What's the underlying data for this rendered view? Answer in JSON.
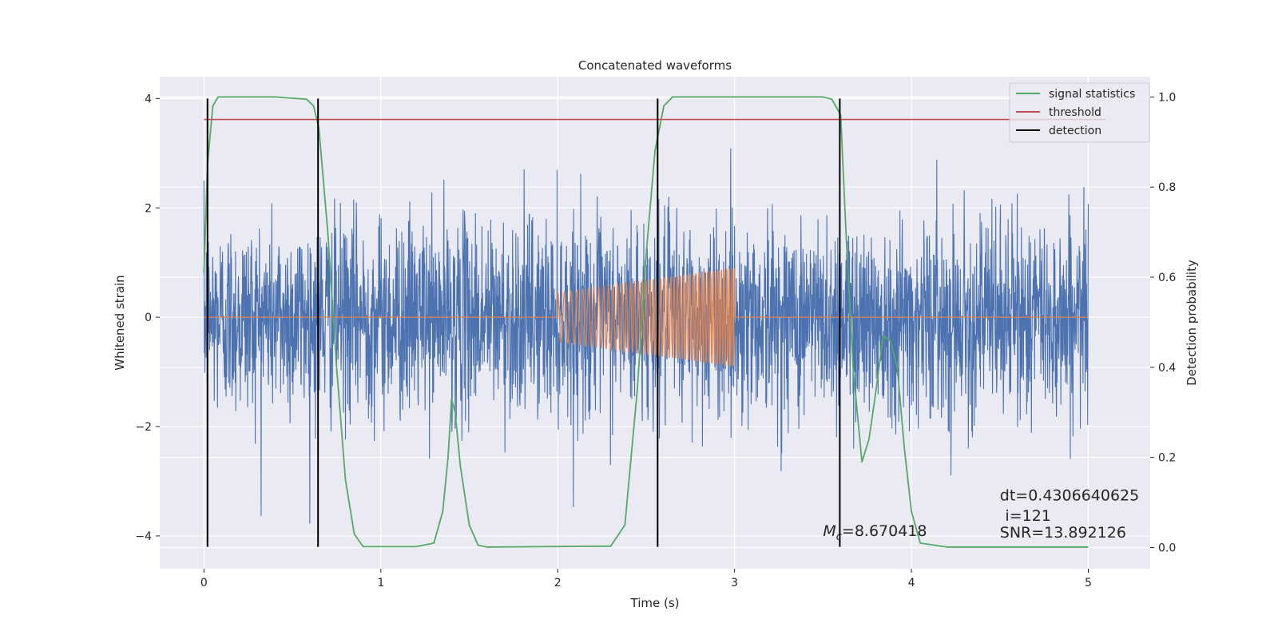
{
  "chart_data": {
    "type": "line",
    "title": "Concatenated waveforms",
    "xlabel": "Time (s)",
    "ylabel_left": "Whitened strain",
    "ylabel_right": "Detection probability",
    "xlim": [
      -0.25,
      5.35
    ],
    "ylim_left": [
      -4.6,
      4.4
    ],
    "ylim_right": [
      -0.047,
      1.045
    ],
    "x_ticks": [
      0,
      1,
      2,
      3,
      4,
      5
    ],
    "x_tick_labels": [
      "0",
      "1",
      "2",
      "3",
      "4",
      "5"
    ],
    "y_left_ticks": [
      -4,
      -2,
      0,
      2,
      4
    ],
    "y_left_tick_labels": [
      "−4",
      "−2",
      "0",
      "2",
      "4"
    ],
    "y_right_ticks": [
      0.0,
      0.2,
      0.4,
      0.6,
      0.8,
      1.0
    ],
    "y_right_tick_labels": [
      "0.0",
      "0.2",
      "0.4",
      "0.6",
      "0.8",
      "1.0"
    ],
    "grid": true,
    "legend_position": "top-right",
    "series": [
      {
        "name": "noisy strain",
        "axis": "left",
        "color": "#4c72b0",
        "kind": "noise",
        "x_range": [
          0,
          5
        ],
        "envelope_approx": 2.4,
        "samples": 3000
      },
      {
        "name": "injected waveform",
        "axis": "left",
        "color": "#dd8452",
        "kind": "chirp",
        "x_range": [
          0,
          5
        ],
        "chirp_start": 2.0,
        "chirp_end": 3.0,
        "amplitude_start": 0.45,
        "amplitude_end": 0.9
      },
      {
        "name": "signal statistics",
        "axis": "right",
        "color": "#55a868",
        "x": [
          0.0,
          0.02,
          0.05,
          0.08,
          0.12,
          0.4,
          0.58,
          0.62,
          0.65,
          0.7,
          0.75,
          0.8,
          0.85,
          0.9,
          1.2,
          1.3,
          1.35,
          1.38,
          1.4,
          1.42,
          1.45,
          1.5,
          1.55,
          1.6,
          2.3,
          2.38,
          2.45,
          2.5,
          2.55,
          2.6,
          2.65,
          2.7,
          3.5,
          3.55,
          3.6,
          3.63,
          3.67,
          3.72,
          3.76,
          3.8,
          3.84,
          3.88,
          3.92,
          3.96,
          4.0,
          4.05,
          4.2,
          5.0
        ],
        "y": [
          0.61,
          0.85,
          0.98,
          1.0,
          1.0,
          1.0,
          0.995,
          0.98,
          0.93,
          0.7,
          0.4,
          0.15,
          0.03,
          0.002,
          0.002,
          0.01,
          0.08,
          0.2,
          0.33,
          0.3,
          0.18,
          0.05,
          0.005,
          0.001,
          0.003,
          0.05,
          0.35,
          0.65,
          0.88,
          0.98,
          1.0,
          1.0,
          1.0,
          0.995,
          0.96,
          0.7,
          0.4,
          0.19,
          0.24,
          0.35,
          0.47,
          0.46,
          0.4,
          0.22,
          0.08,
          0.01,
          0.001,
          0.001
        ]
      },
      {
        "name": "threshold",
        "axis": "right",
        "color": "#c44e52",
        "x": [
          0,
          5.1
        ],
        "y": [
          0.95,
          0.95
        ]
      },
      {
        "name": "detection",
        "axis": "left",
        "color": "#000000",
        "kind": "vlines",
        "x": [
          0.02,
          0.645,
          2.565,
          3.595
        ],
        "ymin": -4.2,
        "ymax": 4.0
      }
    ],
    "legend": [
      {
        "label": "signal statistics",
        "color": "#55a868"
      },
      {
        "label": "threshold",
        "color": "#c44e52"
      },
      {
        "label": "detection",
        "color": "#000000"
      }
    ],
    "annotations": {
      "mc_symbol": "M",
      "mc_sub": "c",
      "mc_value": "=8.670418",
      "dt": "dt=0.4306640625",
      "i": "i=121",
      "snr": "SNR=13.892126"
    },
    "annotation_coords": {
      "mc": [
        3.5,
        -4.0
      ],
      "dt": [
        4.5,
        -3.35
      ],
      "i": [
        4.53,
        -3.72
      ],
      "snr": [
        4.5,
        -4.03
      ]
    }
  },
  "colors": {
    "plot_bg": "#eaeaf2",
    "grid": "#ffffff"
  }
}
